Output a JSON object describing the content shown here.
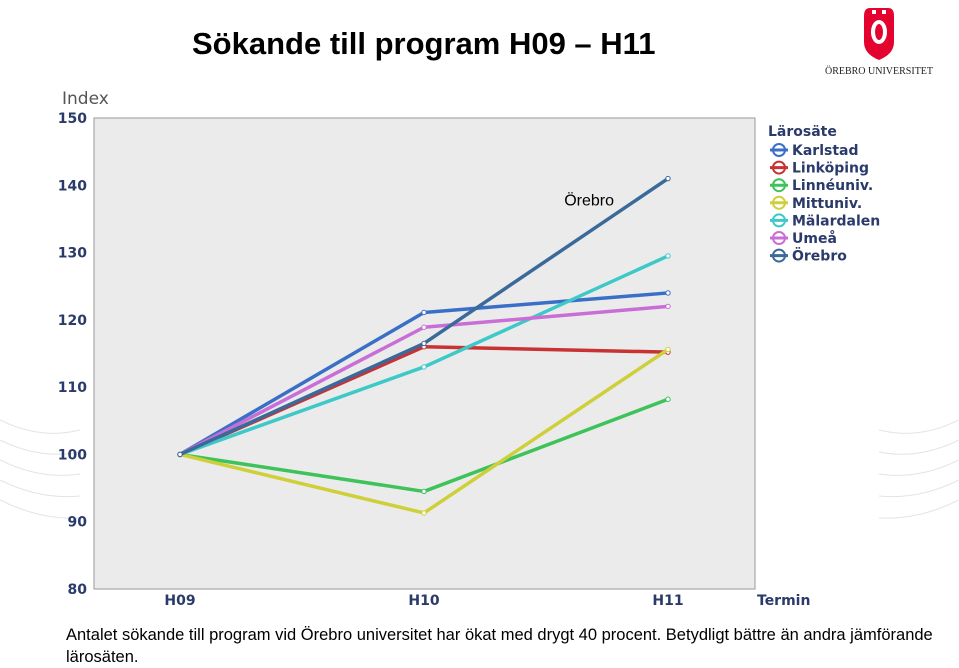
{
  "slide": {
    "title": "Sökande till program H09 – H11",
    "caption": "Antalet sökande till program vid Örebro universitet har ökat med drygt 40 procent. Betydligt bättre än andra jämförande lärosäten.",
    "logo": {
      "text": "ÖREBRO UNIVERSITET",
      "color": "#e4032e"
    }
  },
  "chart_data": {
    "type": "line",
    "ylabel": "Index",
    "xlabel": "Termin",
    "categories": [
      "H09",
      "H10",
      "H11"
    ],
    "ylim": [
      80,
      150
    ],
    "yticks": [
      80,
      90,
      100,
      110,
      120,
      130,
      140,
      150
    ],
    "grid": false,
    "legend": {
      "title": "Lärosäte",
      "placement": "right"
    },
    "annotation": {
      "text": "Örebro",
      "series": "Örebro"
    },
    "series": [
      {
        "name": "Karlstad",
        "color": "#3a6fc8",
        "values": [
          100,
          121.1,
          124
        ]
      },
      {
        "name": "Linköping",
        "color": "#c83232",
        "values": [
          100,
          116,
          115.2
        ]
      },
      {
        "name": "Linnéuniv.",
        "color": "#3ec25a",
        "values": [
          100,
          94.5,
          108.2
        ]
      },
      {
        "name": "Mittuniv.",
        "color": "#cfcf3a",
        "values": [
          100,
          91.3,
          115.6
        ]
      },
      {
        "name": "Mälardalen",
        "color": "#3ec8c8",
        "values": [
          100,
          113,
          129.5
        ]
      },
      {
        "name": "Umeå",
        "color": "#c86ed6",
        "values": [
          100,
          118.9,
          122
        ]
      },
      {
        "name": "Örebro",
        "color": "#3a6a9a",
        "values": [
          100,
          116.5,
          141
        ]
      }
    ]
  }
}
